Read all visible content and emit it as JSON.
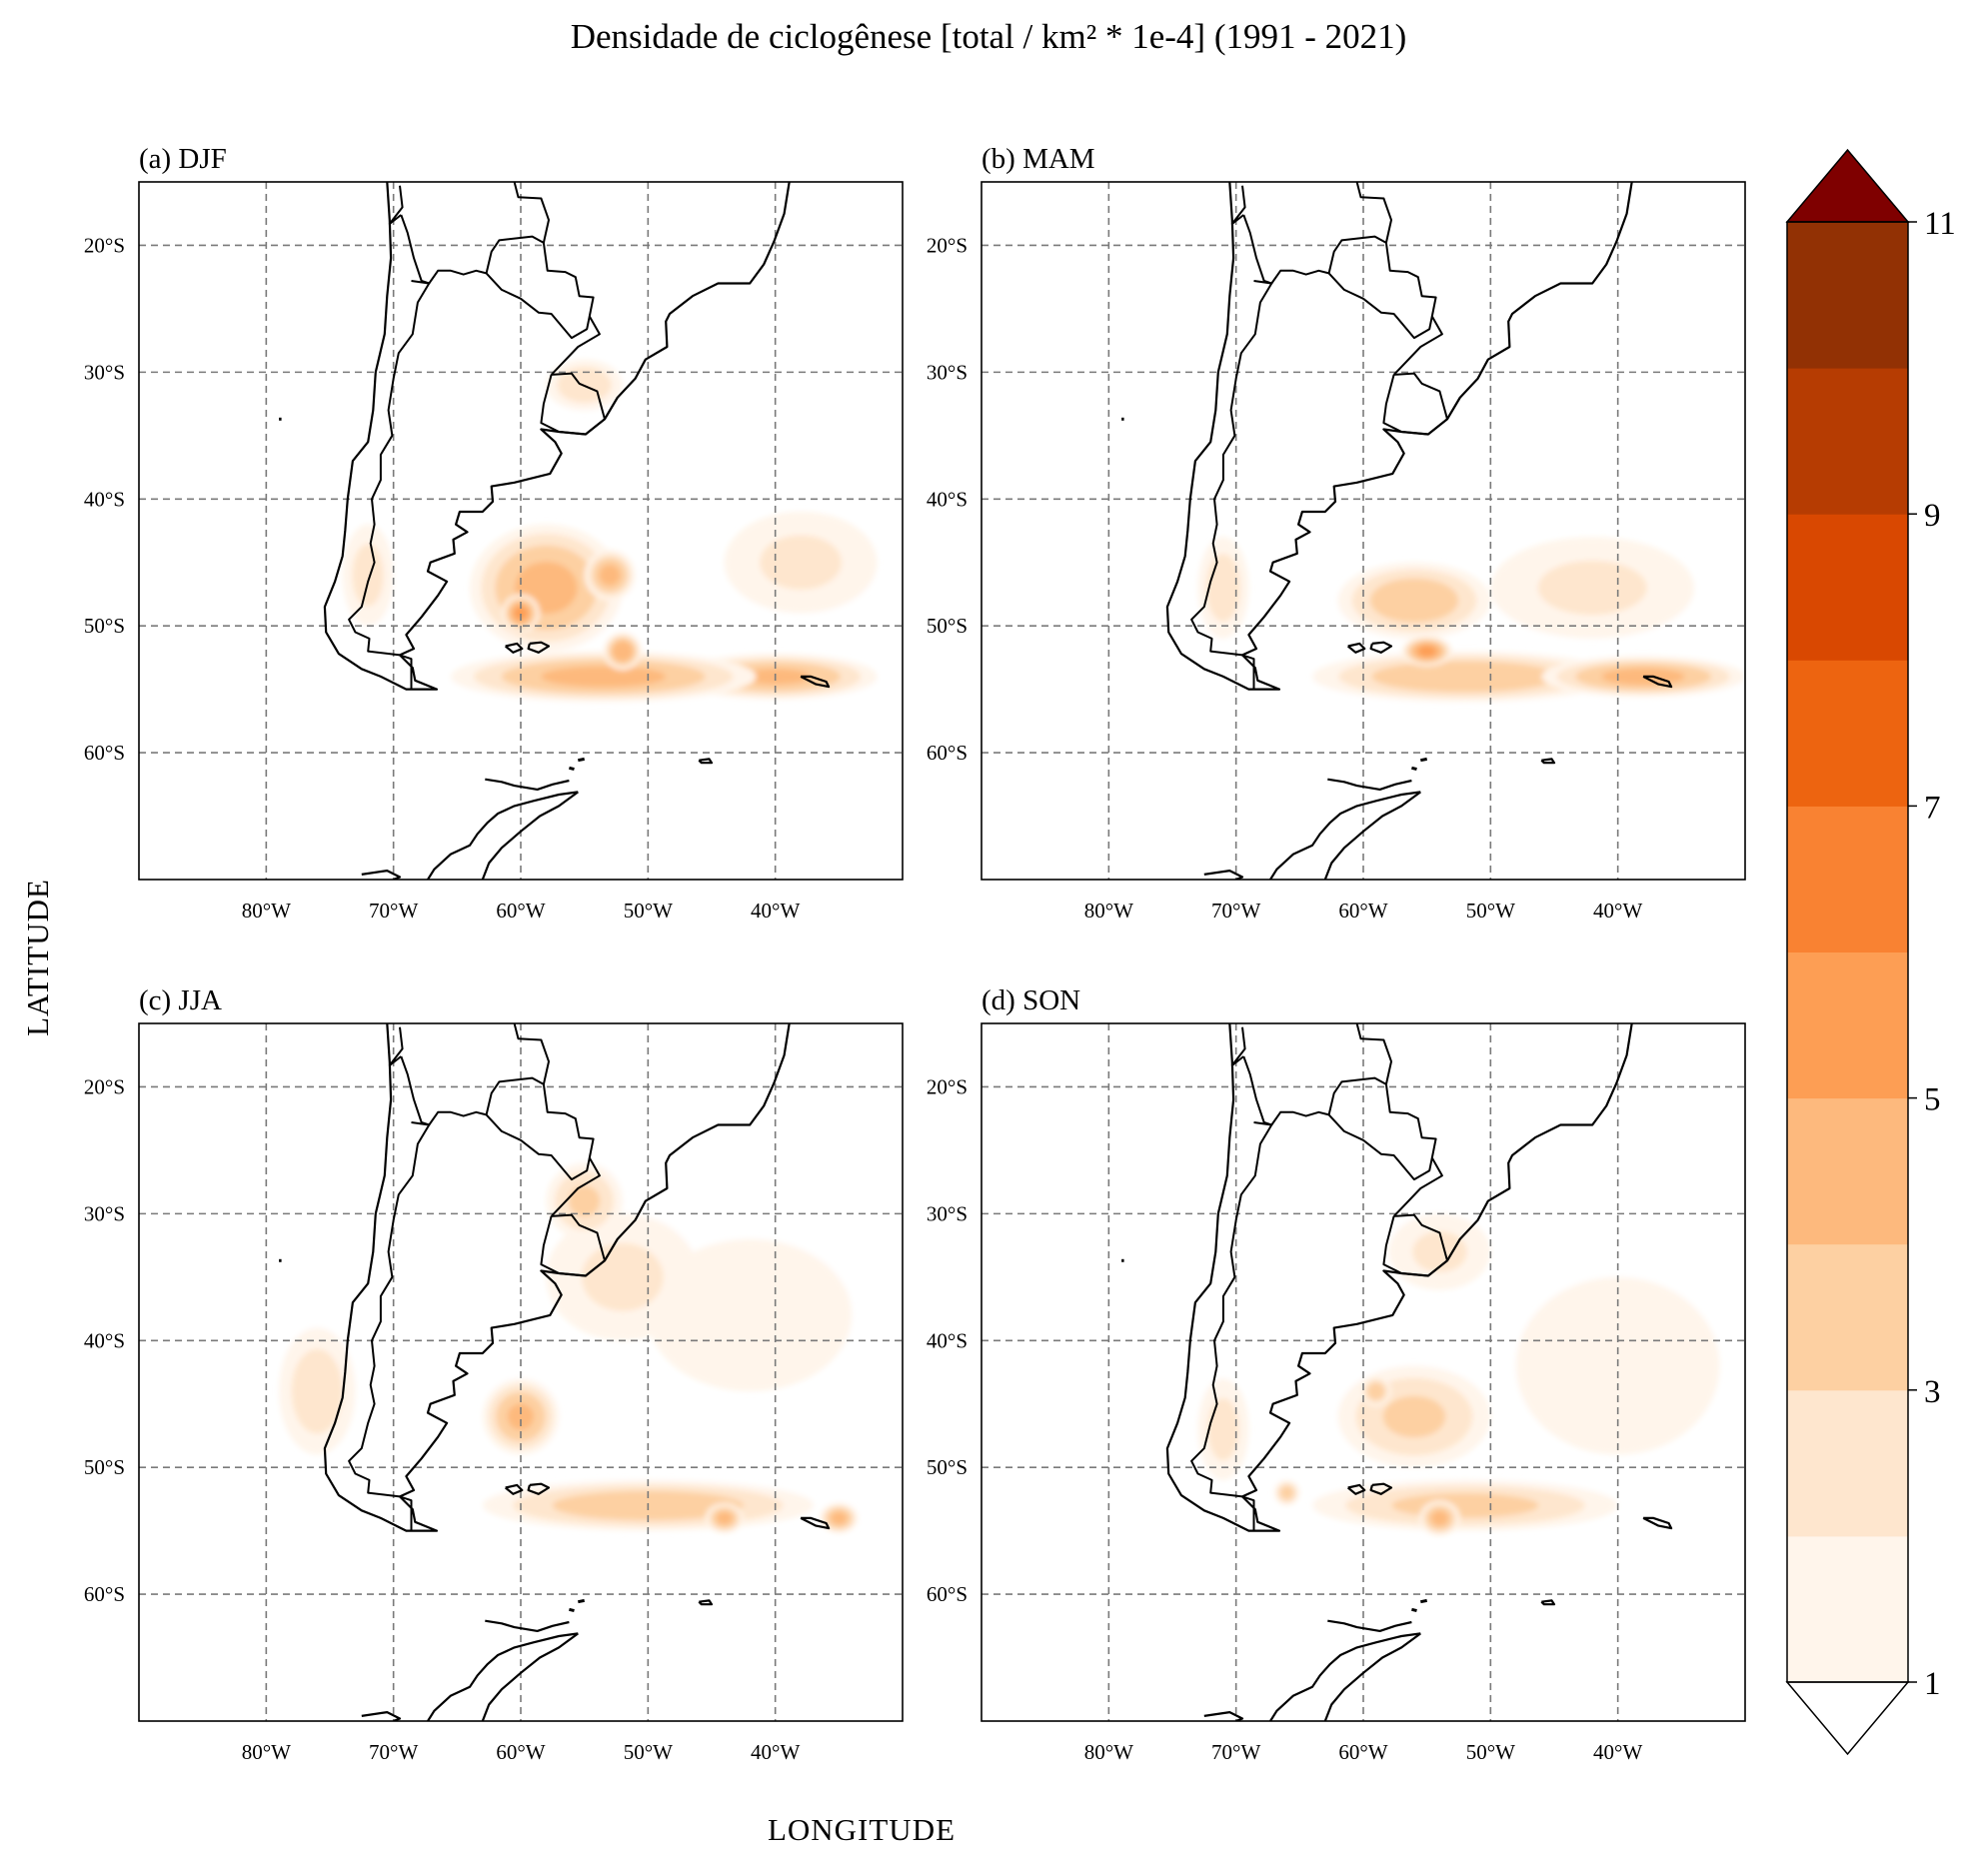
{
  "title": "Densidade de ciclogênese [total / km² * 1e-4] (1991 - 2021)",
  "xlabel": "LONGITUDE",
  "ylabel": "LATITUDE",
  "colors": {
    "coast": "#000000",
    "grid": "#7a7a7a",
    "levels": [
      "#fff5eb",
      "#fee6ce",
      "#fdd0a2",
      "#fdb97d",
      "#fd9e54",
      "#f98232",
      "#ed6410",
      "#d94801",
      "#b63c02",
      "#923104"
    ],
    "extend_max": "#7f0000",
    "extend_min": "#ffffff"
  },
  "chart_data": {
    "type": "heatmap",
    "subtype": "filled-contour-map-panels",
    "extent": {
      "lon": [
        -90,
        -30
      ],
      "lat": [
        -70,
        -15
      ]
    },
    "lon_ticks": [
      "80°W",
      "70°W",
      "60°W",
      "50°W",
      "40°W"
    ],
    "lat_ticks": [
      "20°S",
      "30°S",
      "40°S",
      "50°S",
      "60°S"
    ],
    "colorbar": {
      "levels": [
        1,
        2,
        3,
        4,
        5,
        6,
        7,
        8,
        9,
        10,
        11
      ],
      "tick_labels": [
        "1",
        "3",
        "5",
        "7",
        "9",
        "11"
      ],
      "extend": "both"
    },
    "panels": [
      {
        "id": "DJF",
        "title": "(a) DJF",
        "blobs": [
          {
            "lon": -53.5,
            "lat": -54,
            "value": 4.2,
            "rx": 12,
            "ry": 2
          },
          {
            "lon": -40,
            "lat": -54,
            "value": 4,
            "rx": 8,
            "ry": 1.8
          },
          {
            "lon": -58,
            "lat": -47,
            "value": 4.2,
            "rx": 6,
            "ry": 5
          },
          {
            "lon": -60,
            "lat": -49,
            "value": 5.2,
            "rx": 1.5,
            "ry": 1.5
          },
          {
            "lon": -52,
            "lat": -52,
            "value": 4.8,
            "rx": 1.5,
            "ry": 1.5
          },
          {
            "lon": -53,
            "lat": -46,
            "value": 4.2,
            "rx": 2,
            "ry": 2
          },
          {
            "lon": -55,
            "lat": -31,
            "value": 2.6,
            "rx": 3,
            "ry": 2
          },
          {
            "lon": -38,
            "lat": -45,
            "value": 2,
            "rx": 6,
            "ry": 4
          },
          {
            "lon": -72,
            "lat": -46,
            "value": 2.2,
            "rx": 2,
            "ry": 4
          }
        ]
      },
      {
        "id": "MAM",
        "title": "(b) MAM",
        "blobs": [
          {
            "lon": -52,
            "lat": -54,
            "value": 3.8,
            "rx": 12,
            "ry": 2
          },
          {
            "lon": -38,
            "lat": -54,
            "value": 4.2,
            "rx": 8,
            "ry": 1.6
          },
          {
            "lon": -55,
            "lat": -52,
            "value": 5.2,
            "rx": 2,
            "ry": 1.2
          },
          {
            "lon": -56,
            "lat": -48,
            "value": 3.6,
            "rx": 6,
            "ry": 3
          },
          {
            "lon": -42,
            "lat": -47,
            "value": 2,
            "rx": 8,
            "ry": 4
          },
          {
            "lon": -71,
            "lat": -47,
            "value": 2.4,
            "rx": 2,
            "ry": 4
          }
        ]
      },
      {
        "id": "JJA",
        "title": "(c) JJA",
        "blobs": [
          {
            "lon": -50,
            "lat": -53,
            "value": 3.6,
            "rx": 13,
            "ry": 2
          },
          {
            "lon": -44,
            "lat": -54,
            "value": 4.2,
            "rx": 1.5,
            "ry": 1.2
          },
          {
            "lon": -35,
            "lat": -54,
            "value": 4.2,
            "rx": 1.5,
            "ry": 1.2
          },
          {
            "lon": -60,
            "lat": -46,
            "value": 4,
            "rx": 3,
            "ry": 3
          },
          {
            "lon": -55,
            "lat": -29,
            "value": 3,
            "rx": 3,
            "ry": 3
          },
          {
            "lon": -52,
            "lat": -35,
            "value": 2,
            "rx": 6,
            "ry": 5
          },
          {
            "lon": -42,
            "lat": -38,
            "value": 1.8,
            "rx": 8,
            "ry": 6
          },
          {
            "lon": -76,
            "lat": -44,
            "value": 2.4,
            "rx": 3,
            "ry": 5
          }
        ]
      },
      {
        "id": "SON",
        "title": "(d) SON",
        "blobs": [
          {
            "lon": -52,
            "lat": -53,
            "value": 3.2,
            "rx": 12,
            "ry": 2
          },
          {
            "lon": -54,
            "lat": -54,
            "value": 4.2,
            "rx": 1.6,
            "ry": 1.4
          },
          {
            "lon": -56,
            "lat": -46,
            "value": 3,
            "rx": 6,
            "ry": 4
          },
          {
            "lon": -59,
            "lat": -44,
            "value": 3.6,
            "rx": 1.2,
            "ry": 1.2
          },
          {
            "lon": -54,
            "lat": -33,
            "value": 2,
            "rx": 4,
            "ry": 3
          },
          {
            "lon": -40,
            "lat": -42,
            "value": 1.8,
            "rx": 8,
            "ry": 7
          },
          {
            "lon": -66,
            "lat": -52,
            "value": 3.4,
            "rx": 1,
            "ry": 1
          },
          {
            "lon": -71,
            "lat": -47,
            "value": 2.2,
            "rx": 2,
            "ry": 4
          }
        ]
      }
    ]
  },
  "coastlines": {
    "south_america": [
      [
        -70.5,
        -15
      ],
      [
        -70.3,
        -18
      ],
      [
        -70.2,
        -21
      ],
      [
        -70.5,
        -24
      ],
      [
        -70.7,
        -27
      ],
      [
        -71.4,
        -30
      ],
      [
        -71.6,
        -33
      ],
      [
        -72,
        -35.5
      ],
      [
        -73.2,
        -37
      ],
      [
        -73.6,
        -40
      ],
      [
        -73.8,
        -42.5
      ],
      [
        -74,
        -44.5
      ],
      [
        -74.6,
        -46.5
      ],
      [
        -75.4,
        -48.5
      ],
      [
        -75.3,
        -50.5
      ],
      [
        -74.3,
        -52.2
      ],
      [
        -72.5,
        -53.4
      ],
      [
        -71,
        -54
      ],
      [
        -69,
        -55
      ],
      [
        -66.6,
        -55
      ],
      [
        -68.3,
        -54.3
      ],
      [
        -68.5,
        -53.3
      ],
      [
        -69.5,
        -52.3
      ],
      [
        -68.4,
        -51.8
      ],
      [
        -69,
        -50.7
      ],
      [
        -67.8,
        -49.3
      ],
      [
        -66.5,
        -47.6
      ],
      [
        -65.8,
        -46.5
      ],
      [
        -67.3,
        -45.7
      ],
      [
        -67.1,
        -45
      ],
      [
        -65.2,
        -44.3
      ],
      [
        -65.3,
        -43.2
      ],
      [
        -64.2,
        -42.6
      ],
      [
        -65.1,
        -42
      ],
      [
        -64.8,
        -41
      ],
      [
        -63,
        -41
      ],
      [
        -62.2,
        -40.2
      ],
      [
        -62.3,
        -39
      ],
      [
        -60.5,
        -38.7
      ],
      [
        -57.7,
        -38
      ],
      [
        -56.8,
        -36.4
      ],
      [
        -57.3,
        -35.5
      ],
      [
        -58.4,
        -34.5
      ],
      [
        -57,
        -34.7
      ],
      [
        -54.9,
        -34.9
      ],
      [
        -53.4,
        -33.7
      ],
      [
        -52.4,
        -32
      ],
      [
        -51,
        -30.5
      ],
      [
        -50.2,
        -29
      ],
      [
        -48.5,
        -28
      ],
      [
        -48.6,
        -26
      ],
      [
        -48.3,
        -25.4
      ],
      [
        -46.5,
        -24
      ],
      [
        -44.5,
        -23
      ],
      [
        -42,
        -23
      ],
      [
        -40.9,
        -21.5
      ],
      [
        -40.1,
        -19.7
      ],
      [
        -39.3,
        -17.5
      ],
      [
        -38.9,
        -15
      ]
    ],
    "falklands_east": [
      [
        -59.3,
        -51.4
      ],
      [
        -58.4,
        -51.3
      ],
      [
        -57.8,
        -51.6
      ],
      [
        -58.6,
        -52.1
      ],
      [
        -59.4,
        -51.8
      ],
      [
        -59.3,
        -51.4
      ]
    ],
    "falklands_west": [
      [
        -61.2,
        -51.6
      ],
      [
        -60.3,
        -51.4
      ],
      [
        -59.9,
        -51.8
      ],
      [
        -60.6,
        -52.1
      ],
      [
        -61.2,
        -51.6
      ]
    ],
    "south_georgia": [
      [
        -38,
        -54
      ],
      [
        -37.2,
        -54
      ],
      [
        -36,
        -54.4
      ],
      [
        -35.8,
        -54.8
      ],
      [
        -36.8,
        -54.6
      ],
      [
        -38,
        -54
      ]
    ],
    "south_orkney": [
      [
        -46,
        -60.6
      ],
      [
        -45.2,
        -60.5
      ],
      [
        -45,
        -60.8
      ],
      [
        -45.8,
        -60.8
      ],
      [
        -46,
        -60.6
      ]
    ],
    "antarctic_peninsula": [
      [
        -55.5,
        -63.1
      ],
      [
        -57,
        -63.3
      ],
      [
        -59,
        -63.8
      ],
      [
        -60.5,
        -64.2
      ],
      [
        -61.8,
        -64.8
      ],
      [
        -62.6,
        -65.5
      ],
      [
        -63.4,
        -66.4
      ],
      [
        -64,
        -67.3
      ],
      [
        -65.5,
        -68
      ],
      [
        -66.8,
        -69.2
      ],
      [
        -67.3,
        -70
      ]
    ],
    "antarctic_peninsula_east": [
      [
        -55.5,
        -63.1
      ],
      [
        -57,
        -64.2
      ],
      [
        -58.5,
        -65
      ],
      [
        -60,
        -66.2
      ],
      [
        -61.5,
        -67.5
      ],
      [
        -62.5,
        -68.7
      ],
      [
        -63,
        -70
      ]
    ],
    "south_shetlands": [
      [
        -62.8,
        -62.1
      ],
      [
        -61.5,
        -62.3
      ],
      [
        -60.5,
        -62.6
      ],
      [
        -58.7,
        -62.9
      ],
      [
        -57.5,
        -62.5
      ],
      [
        -56.2,
        -62.2
      ]
    ],
    "alexander_island": [
      [
        -72.5,
        -69.6
      ],
      [
        -70.5,
        -69.3
      ],
      [
        -69.5,
        -69.8
      ],
      [
        -70,
        -70
      ]
    ],
    "small_islands": [
      [
        -79,
        -33.7
      ],
      [
        -78.8,
        -33.7
      ],
      [
        -55.5,
        -60.6
      ],
      [
        -55,
        -60.5
      ],
      [
        -56.2,
        -61.2
      ],
      [
        -55.8,
        -61.3
      ]
    ]
  },
  "borders": {
    "chile_argentina": [
      [
        -68.6,
        -22.8
      ],
      [
        -67.2,
        -23
      ],
      [
        -68.1,
        -24.5
      ],
      [
        -68.5,
        -27
      ],
      [
        -69.6,
        -28.5
      ],
      [
        -70,
        -30.5
      ],
      [
        -70.4,
        -33
      ],
      [
        -70.1,
        -35
      ],
      [
        -71,
        -36.5
      ],
      [
        -71,
        -38.5
      ],
      [
        -71.7,
        -40
      ],
      [
        -71.5,
        -42
      ],
      [
        -71.8,
        -43.5
      ],
      [
        -71.5,
        -45
      ],
      [
        -72,
        -46.5
      ],
      [
        -72.5,
        -48.5
      ],
      [
        -73.5,
        -49.5
      ],
      [
        -73,
        -50.5
      ],
      [
        -71.9,
        -51
      ],
      [
        -72,
        -52
      ],
      [
        -69.5,
        -52.3
      ],
      [
        -68.6,
        -52.6
      ],
      [
        -68.6,
        -55
      ]
    ],
    "peru_chile_bolivia": [
      [
        -69.5,
        -15.3
      ],
      [
        -69.3,
        -17
      ],
      [
        -70.3,
        -18.3
      ],
      [
        -69.4,
        -17.6
      ]
    ],
    "bolivia_chile": [
      [
        -69.4,
        -17.6
      ],
      [
        -68.9,
        -19
      ],
      [
        -68.4,
        -21
      ],
      [
        -67.8,
        -22.8
      ],
      [
        -67.2,
        -23
      ]
    ],
    "argentina_north": [
      [
        -67.2,
        -23
      ],
      [
        -66.5,
        -22
      ],
      [
        -65.5,
        -22
      ],
      [
        -64.5,
        -22.3
      ],
      [
        -63.5,
        -22
      ],
      [
        -62.7,
        -22.2
      ],
      [
        -61.5,
        -23.5
      ],
      [
        -60,
        -24.2
      ],
      [
        -58.6,
        -25.3
      ],
      [
        -57.6,
        -25.4
      ],
      [
        -56,
        -27.3
      ],
      [
        -54.8,
        -26.6
      ],
      [
        -54.6,
        -25.6
      ],
      [
        -53.8,
        -27
      ],
      [
        -55.5,
        -28
      ],
      [
        -57.6,
        -30.2
      ]
    ],
    "paraguay_north": [
      [
        -62.7,
        -22.2
      ],
      [
        -62.3,
        -20.5
      ],
      [
        -61.7,
        -19.6
      ],
      [
        -59.1,
        -19.3
      ],
      [
        -58.2,
        -19.8
      ],
      [
        -57.9,
        -22
      ],
      [
        -56.5,
        -22.1
      ],
      [
        -55.7,
        -22.5
      ],
      [
        -55.4,
        -24
      ],
      [
        -54.3,
        -24.1
      ],
      [
        -54.6,
        -25.6
      ]
    ],
    "bolivia_east": [
      [
        -58.2,
        -19.8
      ],
      [
        -57.8,
        -18
      ],
      [
        -58.4,
        -16.3
      ],
      [
        -60.2,
        -16.2
      ],
      [
        -60.5,
        -15
      ]
    ],
    "uruguay": [
      [
        -57.6,
        -30.2
      ],
      [
        -56,
        -30.1
      ],
      [
        -55.4,
        -30.9
      ],
      [
        -54,
        -31.5
      ],
      [
        -53.4,
        -33.7
      ],
      [
        -54.9,
        -34.9
      ],
      [
        -57,
        -34.7
      ],
      [
        -58.4,
        -34
      ],
      [
        -58.2,
        -32.5
      ],
      [
        -57.6,
        -30.2
      ]
    ],
    "brazil_uruguay_coast": [
      [
        -53.4,
        -33.7
      ],
      [
        -52.4,
        -32
      ]
    ]
  }
}
